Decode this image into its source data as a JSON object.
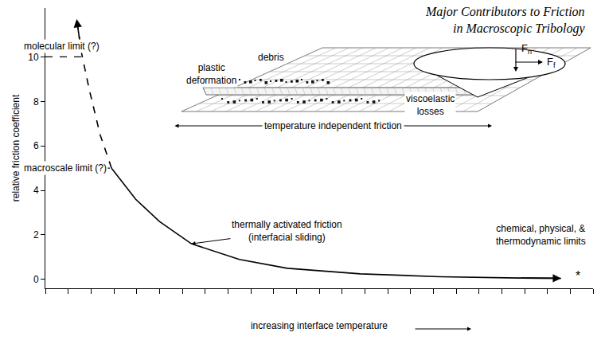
{
  "chart_data": {
    "type": "line",
    "title": "Major Contributors to Friction\nin Macroscopic Tribology",
    "x_label": "increasing interface temperature",
    "y_label": "relative friction coefficient",
    "xlim": [
      0,
      24
    ],
    "xticks": [
      0,
      1,
      2,
      3,
      4,
      5,
      6,
      7,
      8,
      9,
      10,
      11,
      12,
      13,
      14,
      15,
      16,
      17,
      18,
      19,
      20,
      21,
      22,
      23,
      24
    ],
    "ylim": [
      -0.4,
      12.2
    ],
    "yticks": [
      0,
      2,
      4,
      6,
      8,
      10
    ],
    "tick_labels": "y",
    "grid": false,
    "series": [
      {
        "color": "#000000",
        "line_style": "solid",
        "x": [
          2.9,
          3.96,
          5.0,
          6.4,
          8.5,
          10.6,
          13.8,
          17.3,
          20.8,
          22.6
        ],
        "values": [
          5.0,
          3.6,
          2.6,
          1.6,
          0.9,
          0.5,
          0.25,
          0.12,
          0.06,
          0.05
        ]
      },
      {
        "color": "#000000",
        "line_style": "dashed",
        "x": [
          2.9,
          2.4,
          1.93,
          1.58,
          1.37
        ],
        "values": [
          5.0,
          6.5,
          8.5,
          10.2,
          11.7
        ]
      }
    ],
    "reference_lines": [
      {
        "label": "molecular limit (?)",
        "value": 10
      },
      {
        "label": "macroscale limit (?)",
        "value": 5
      }
    ],
    "annotations": {
      "thermally_activated": "thermally activated friction\n(interfacial sliding)",
      "temperature_independent": "temperature independent friction",
      "limits": "chemical, physical, &\nthermodynamic limits",
      "limits_mark": "*"
    },
    "inset": {
      "plastic_deformation": "plastic\ndeformation",
      "debris": "debris",
      "viscoelastic": "viscoelastic\nlosses",
      "normal_force": {
        "text": "F",
        "sub": "n"
      },
      "friction_force": {
        "text": "F",
        "sub": "f"
      }
    }
  }
}
